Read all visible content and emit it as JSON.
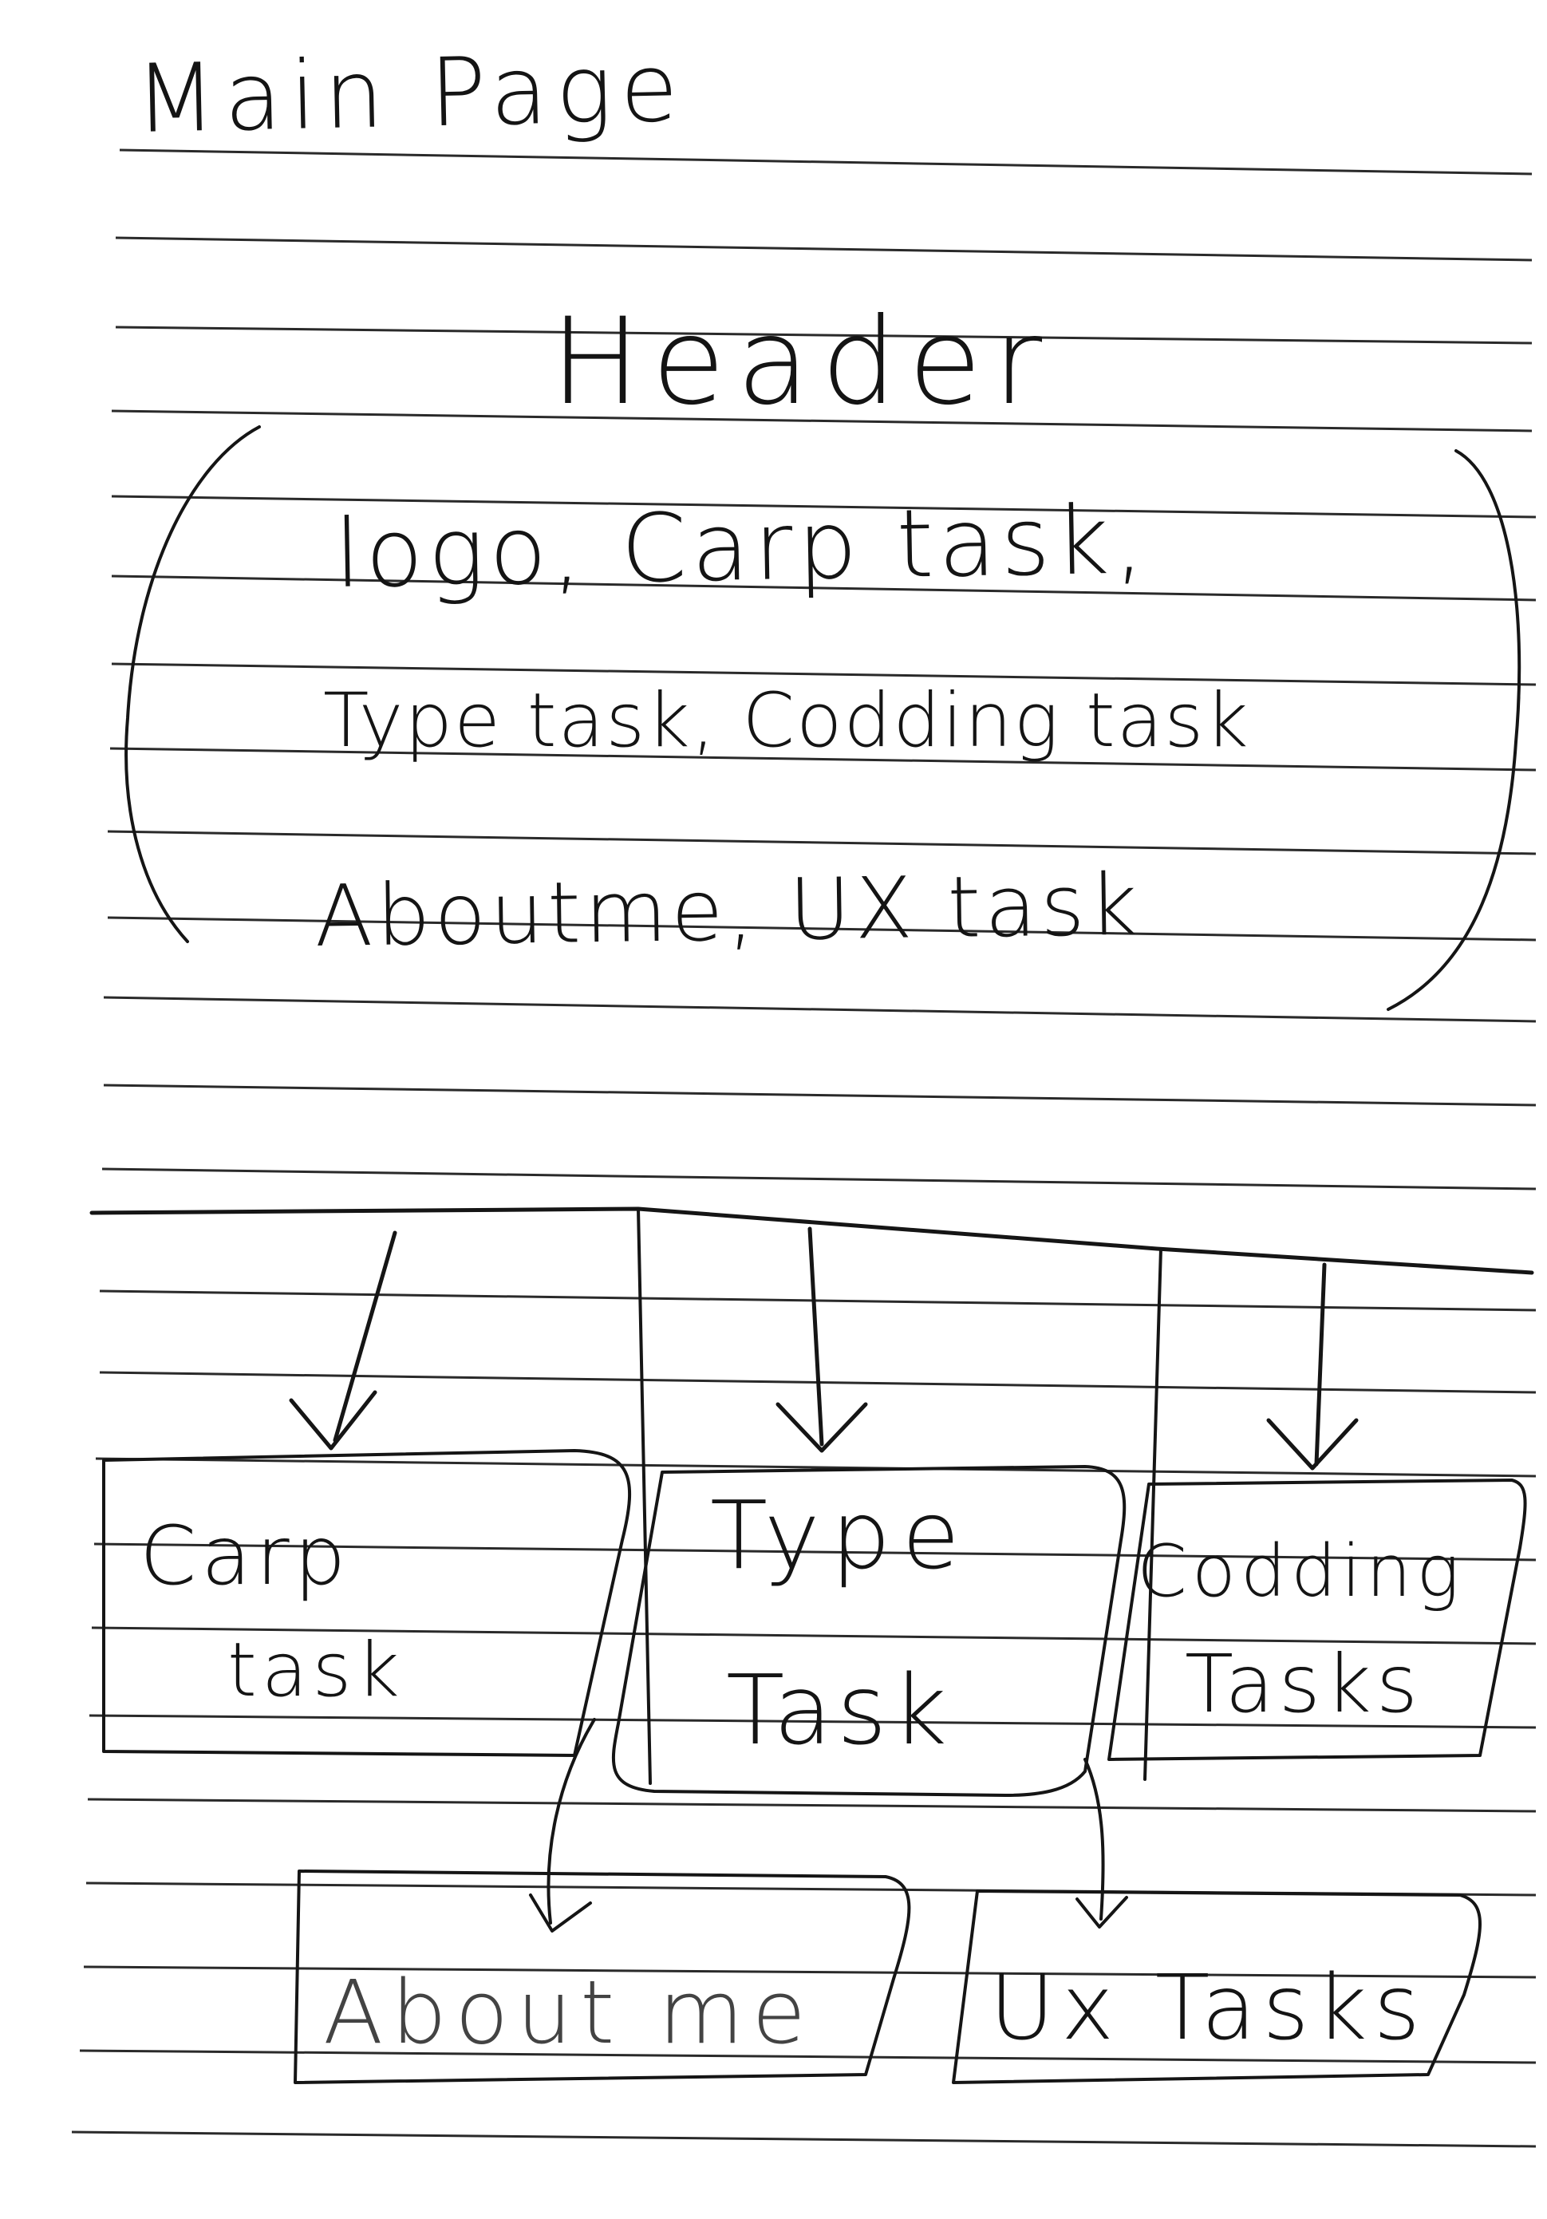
{
  "page": {
    "title": "Main Page"
  },
  "header_block": {
    "title": "Header",
    "contents_lines": [
      "logo, Carp task,",
      "Type task, Codding task",
      "Aboutme, UX task"
    ]
  },
  "boxes": {
    "carp_task": [
      "Carp",
      "task"
    ],
    "type_task": [
      "Type",
      "Task"
    ],
    "codding_tasks": [
      "Codding",
      "Tasks"
    ],
    "about_me": [
      "About me"
    ],
    "ux_tasks": [
      "Ux Tasks"
    ]
  },
  "colors": {
    "ink": "#151515",
    "paper": "#ffffff",
    "rule": "#2a2a2a"
  }
}
